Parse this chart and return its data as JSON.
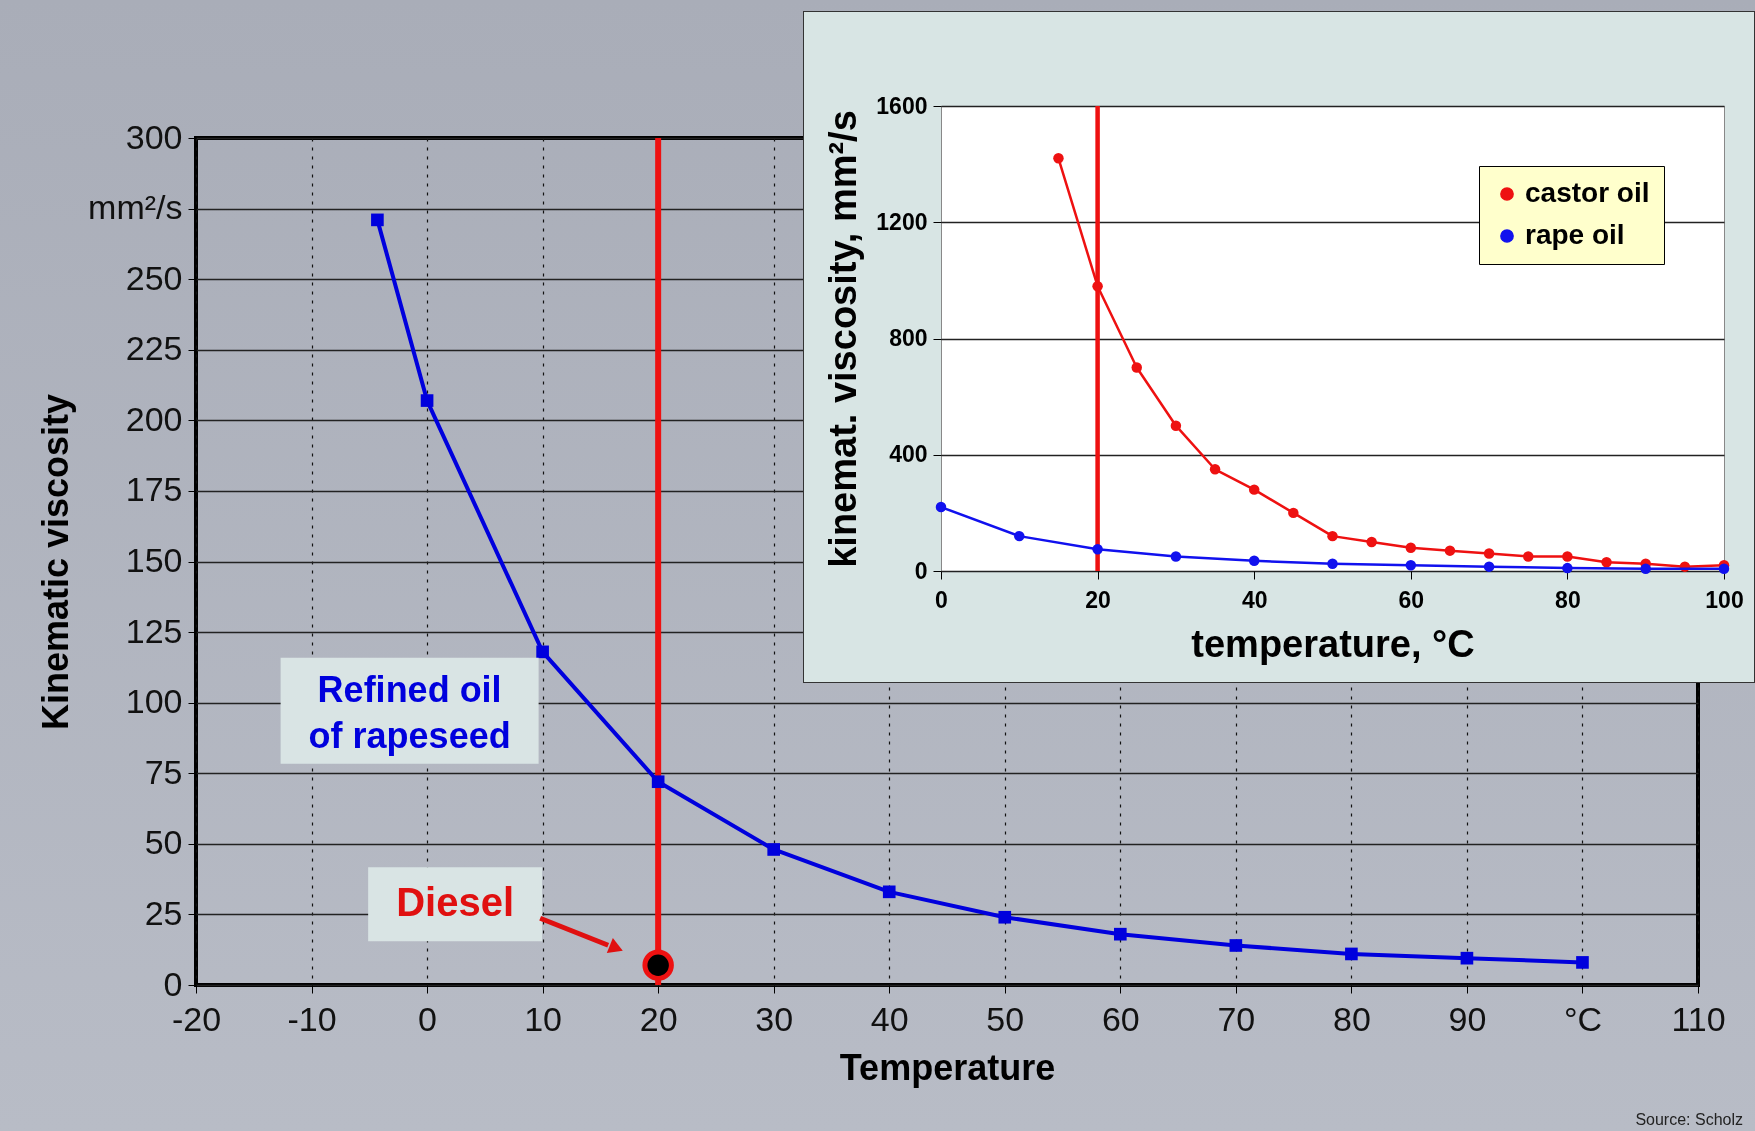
{
  "chart_data": [
    {
      "type": "line",
      "xlabel": "Temperature",
      "ylabel": "Kinematic viscosity",
      "xlim": [
        -20,
        110
      ],
      "xticks": [
        -20,
        -10,
        0,
        10,
        20,
        30,
        40,
        50,
        60,
        70,
        80,
        90,
        {
          "value": 100,
          "label": "°C"
        },
        110
      ],
      "ylim": [
        0,
        300
      ],
      "yticks": [
        0,
        25,
        50,
        75,
        100,
        125,
        150,
        175,
        200,
        225,
        250,
        {
          "value": 275,
          "label": "mm²/s"
        },
        300
      ],
      "grid": true,
      "marker": "square",
      "legend": false,
      "series": [
        {
          "name": "Refined oil of rapeseed",
          "color": "#0000dd",
          "x": [
            -4.3,
            0,
            10,
            20,
            30,
            40,
            50,
            60,
            70,
            80,
            90,
            100
          ],
          "values": [
            271,
            207,
            118,
            72,
            48,
            33,
            24,
            18,
            14,
            11,
            9.5,
            8
          ]
        },
        {
          "name": "Diesel",
          "type": "scatter",
          "marker": "circle",
          "color": "#000000",
          "x": [
            20
          ],
          "values": [
            7
          ]
        }
      ],
      "ref_lines": [
        {
          "axis": "x",
          "value": 20,
          "color": "#ee1111"
        }
      ],
      "annotations": [
        "Source: Scholz"
      ]
    },
    {
      "type": "line",
      "xlabel": "temperature, °C",
      "ylabel": "kinemat. viscosity, mm²/s",
      "xlim": [
        0,
        100
      ],
      "xticks": [
        0,
        20,
        40,
        60,
        80,
        100
      ],
      "ylim": [
        0,
        1600
      ],
      "yticks": [
        0,
        400,
        800,
        1200,
        1600
      ],
      "grid": "y",
      "marker": "circle",
      "legend": "top right",
      "series": [
        {
          "name": "castor oil",
          "color": "#ee1111",
          "x": [
            15,
            20,
            25,
            30,
            35,
            40,
            45,
            50,
            55,
            60,
            65,
            70,
            75,
            80,
            85,
            90,
            95,
            100
          ],
          "values": [
            1420,
            980,
            700,
            500,
            350,
            280,
            200,
            120,
            100,
            80,
            70,
            60,
            50,
            50,
            30,
            25,
            15,
            20
          ]
        },
        {
          "name": "rape oil",
          "color": "#1111ee",
          "x": [
            0,
            10,
            20,
            30,
            40,
            50,
            60,
            70,
            80,
            90,
            100
          ],
          "values": [
            220,
            120,
            75,
            50,
            35,
            25,
            20,
            15,
            10,
            8,
            8
          ]
        }
      ],
      "ref_lines": [
        {
          "axis": "x",
          "value": 20,
          "color": "#ee1111"
        }
      ]
    }
  ]
}
